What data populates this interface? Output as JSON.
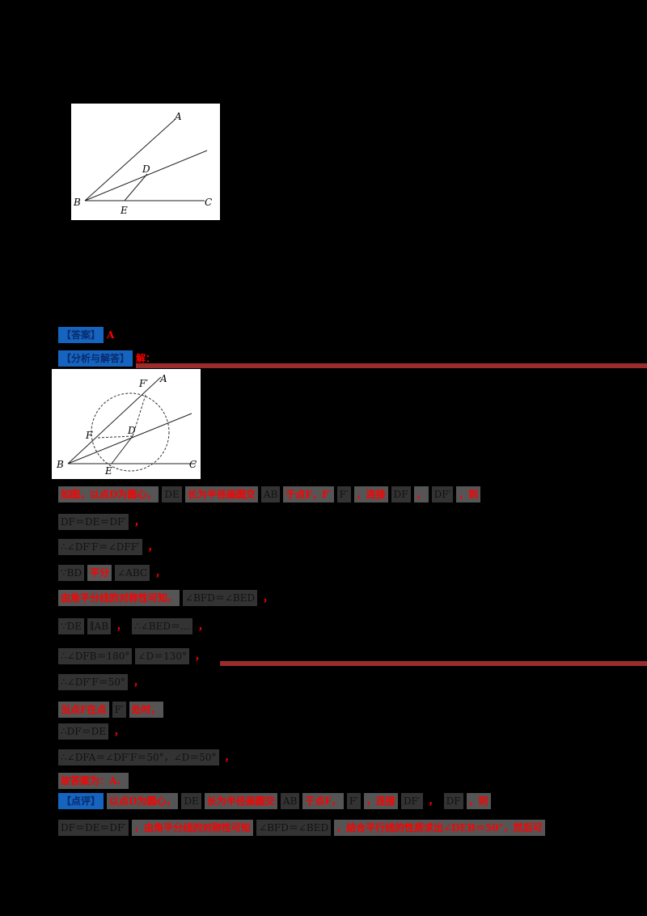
{
  "figure1": {
    "labels": {
      "A": "A",
      "B": "B",
      "C": "C",
      "D": "D",
      "E": "E"
    }
  },
  "answer": {
    "label": "【答案】",
    "value": "A"
  },
  "analysis": {
    "label": "【分析与解答】",
    "value": "解："
  },
  "figure2": {
    "labels": {
      "A": "A",
      "B": "B",
      "C": "C",
      "D": "D",
      "E": "E",
      "F": "F",
      "F2": "F′"
    }
  },
  "solution_lines": [
    {
      "id": "l1",
      "parts": [
        {
          "t": "如图，以点D为圆心，",
          "c": "red"
        },
        {
          "t": "DE",
          "c": "blk"
        },
        {
          "t": "长为半径画圆交",
          "c": "red"
        },
        {
          "t": "AB",
          "c": "blk"
        },
        {
          "t": "于点F，F′",
          "c": "red"
        },
        {
          "t": "F′",
          "c": "blk"
        },
        {
          "t": "，连接",
          "c": "red"
        },
        {
          "t": "DF",
          "c": "blk"
        },
        {
          "t": "，",
          "c": "red"
        },
        {
          "t": "DF′",
          "c": "blk"
        },
        {
          "t": "，则",
          "c": "red"
        }
      ]
    },
    {
      "id": "l2",
      "parts": [
        {
          "t": "DF＝DE＝DF′",
          "c": "blk"
        },
        {
          "t": "，",
          "c": "dot"
        }
      ]
    },
    {
      "id": "l3",
      "parts": [
        {
          "t": "∴∠DF′F＝∠DFF′",
          "c": "blk"
        },
        {
          "t": "，",
          "c": "dot"
        }
      ]
    },
    {
      "id": "l4",
      "parts": [
        {
          "t": "∵BD",
          "c": "blk"
        },
        {
          "t": "平分",
          "c": "red"
        },
        {
          "t": "∠ABC",
          "c": "blk"
        },
        {
          "t": "，",
          "c": "dot"
        }
      ]
    },
    {
      "id": "l5",
      "parts": [
        {
          "t": "由角平分线的对称性可知，",
          "c": "red"
        },
        {
          "t": "∠BFD＝∠BED",
          "c": "blk"
        },
        {
          "t": "，",
          "c": "dot"
        }
      ]
    },
    {
      "id": "l6",
      "parts": [
        {
          "t": "∵DE",
          "c": "blk"
        },
        {
          "t": "∥AB",
          "c": "blk"
        },
        {
          "t": "，",
          "c": "dot"
        },
        {
          "t": "∴∠BED＝…",
          "c": "blk"
        },
        {
          "t": "，",
          "c": "dot"
        }
      ]
    },
    {
      "id": "l7",
      "parts": [
        {
          "t": "∴∠DFB＝180°",
          "c": "blk"
        },
        {
          "t": "∠D＝130°",
          "c": "blk"
        },
        {
          "t": "，",
          "c": "dot"
        }
      ]
    },
    {
      "id": "l8",
      "parts": [
        {
          "t": "∴∠DF′F＝50°",
          "c": "blk"
        },
        {
          "t": "，",
          "c": "dot"
        }
      ]
    },
    {
      "id": "l9",
      "parts": [
        {
          "t": "当点F在点",
          "c": "red"
        },
        {
          "t": "F′",
          "c": "blk"
        },
        {
          "t": "处时，",
          "c": "red"
        }
      ]
    },
    {
      "id": "l10",
      "parts": [
        {
          "t": "∴DF＝DE",
          "c": "blk"
        },
        {
          "t": "，",
          "c": "dot"
        }
      ]
    },
    {
      "id": "l11",
      "parts": [
        {
          "t": "∴∠DFA＝∠DF′F＝50°，∠D＝50°",
          "c": "blk"
        },
        {
          "t": "，",
          "c": "dot"
        }
      ]
    },
    {
      "id": "l12",
      "parts": [
        {
          "t": "故答案为：A．",
          "c": "red"
        }
      ]
    }
  ],
  "review": {
    "label": "【点评】",
    "line1": [
      {
        "t": "以点D为圆心，",
        "c": "red"
      },
      {
        "t": "DE",
        "c": "blk"
      },
      {
        "t": "长为半径画圆交",
        "c": "red"
      },
      {
        "t": "AB",
        "c": "blk"
      },
      {
        "t": "于点F，",
        "c": "red"
      },
      {
        "t": "F′",
        "c": "blk"
      },
      {
        "t": "，连接",
        "c": "red"
      },
      {
        "t": "DF′",
        "c": "blk"
      },
      {
        "t": "，",
        "c": "dot"
      },
      {
        "t": "DF",
        "c": "blk"
      },
      {
        "t": "，则",
        "c": "red"
      }
    ],
    "line2": [
      {
        "t": "DF＝DE＝DF′",
        "c": "blk"
      },
      {
        "t": "，由角平分线的对称性可知",
        "c": "red"
      },
      {
        "t": "∠BFD＝∠BED",
        "c": "blk"
      },
      {
        "t": "，结合平行线的性质求出∠DEB＝50°，然后可",
        "c": "red"
      }
    ]
  },
  "colors": {
    "background": "#000000",
    "label_blue": "#1565c0",
    "text_red": "#ff0000",
    "rule": "#9b2c2c",
    "highlight": "#555555"
  }
}
